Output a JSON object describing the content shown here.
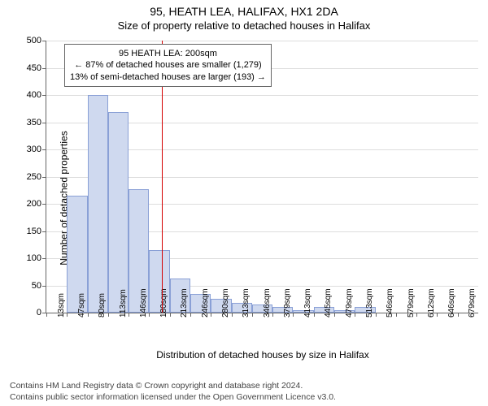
{
  "title": "95, HEATH LEA, HALIFAX, HX1 2DA",
  "subtitle": "Size of property relative to detached houses in Halifax",
  "ylabel": "Number of detached properties",
  "xlabel": "Distribution of detached houses by size in Halifax",
  "chart": {
    "type": "histogram",
    "background_color": "#ffffff",
    "bar_fill": "#cfd9ef",
    "bar_border": "#8aa0d6",
    "grid_color": "#bbbbbb",
    "axis_color": "#666666",
    "marker_color": "#d40000",
    "ylim": [
      0,
      500
    ],
    "ytick_step": 50,
    "categories": [
      "13sqm",
      "47sqm",
      "80sqm",
      "113sqm",
      "146sqm",
      "180sqm",
      "213sqm",
      "246sqm",
      "280sqm",
      "313sqm",
      "346sqm",
      "379sqm",
      "413sqm",
      "445sqm",
      "479sqm",
      "513sqm",
      "546sqm",
      "579sqm",
      "612sqm",
      "646sqm",
      "679sqm"
    ],
    "values": [
      0,
      215,
      400,
      368,
      227,
      115,
      62,
      35,
      25,
      18,
      15,
      10,
      5,
      10,
      4,
      10,
      0,
      0,
      0,
      0,
      0
    ],
    "marker_index": 5.6,
    "annotation": {
      "line1": "95 HEATH LEA: 200sqm",
      "line2": "← 87% of detached houses are smaller (1,279)",
      "line3": "13% of semi-detached houses are larger (193) →"
    },
    "title_fontsize": 14,
    "label_fontsize": 12,
    "tick_fontsize": 11
  },
  "footer": {
    "line1": "Contains HM Land Registry data © Crown copyright and database right 2024.",
    "line2": "Contains public sector information licensed under the Open Government Licence v3.0."
  }
}
